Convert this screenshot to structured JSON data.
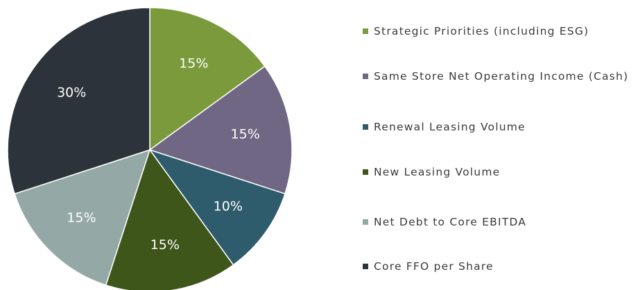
{
  "chart_data": {
    "type": "pie",
    "categories": [
      "Strategic Priorities (including ESG)",
      "Same Store Net Operating Income (Cash)",
      "Renewal Leasing Volume",
      "New Leasing Volume",
      "Net Debt to Core EBITDA",
      "Core FFO per Share"
    ],
    "values": [
      15,
      15,
      10,
      15,
      15,
      30
    ],
    "value_labels": [
      "15%",
      "15%",
      "10%",
      "15%",
      "15%",
      "30%"
    ],
    "colors": [
      "#7b9a3c",
      "#706785",
      "#2f5c6c",
      "#3e561a",
      "#94a9a6",
      "#2c333a"
    ]
  }
}
